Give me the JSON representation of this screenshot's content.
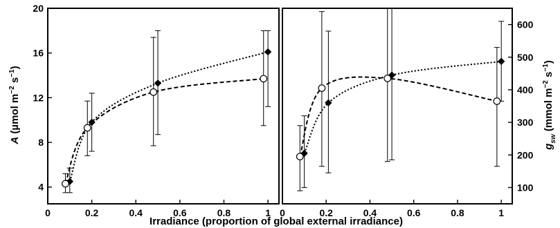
{
  "chart_data": [
    {
      "panel": "left",
      "type": "line",
      "xlabel": "Irradiance (proportion of global external irradiance)",
      "ylabel": "A (µmol m⁻² s⁻¹)",
      "xlim": [
        0,
        1.05
      ],
      "ylim": [
        2.5,
        20
      ],
      "x_ticks": [
        0,
        0.2,
        0.4,
        0.6,
        0.8,
        1
      ],
      "x_tick_labels": [
        "0",
        "0.2",
        "0.4",
        "0.6",
        "0.8",
        "1"
      ],
      "y_ticks": [
        4,
        8,
        12,
        16,
        20
      ],
      "y_tick_labels": [
        "4",
        "8",
        "12",
        "16",
        "20"
      ],
      "y_side": "left",
      "series": [
        {
          "marker": "filled-diamond",
          "line": "dotted",
          "points": [
            {
              "x": 0.1,
              "y": 4.5,
              "lo": 3.5,
              "hi": 5.7
            },
            {
              "x": 0.2,
              "y": 9.8,
              "lo": 7.2,
              "hi": 12.4
            },
            {
              "x": 0.5,
              "y": 13.3,
              "lo": 8.7,
              "hi": 18.0
            },
            {
              "x": 1.0,
              "y": 16.1,
              "lo": 11.2,
              "hi": 18.0
            }
          ]
        },
        {
          "marker": "open-circle",
          "line": "dashed",
          "points": [
            {
              "x": 0.08,
              "y": 4.3,
              "lo": 3.5,
              "hi": 5.2
            },
            {
              "x": 0.18,
              "y": 9.3,
              "lo": 6.8,
              "hi": 11.7
            },
            {
              "x": 0.48,
              "y": 12.5,
              "lo": 7.7,
              "hi": 17.4
            },
            {
              "x": 0.98,
              "y": 13.7,
              "lo": 9.5,
              "hi": 18.0
            }
          ]
        }
      ]
    },
    {
      "panel": "right",
      "type": "line",
      "xlabel": "Irradiance (proportion of global external irradiance)",
      "ylabel": "gsw (mmol m⁻² s⁻¹)",
      "ylabel_main": "g",
      "ylabel_sub": "sw",
      "ylabel_rest": " (mmol m⁻² s⁻¹)",
      "xlim": [
        0,
        1.05
      ],
      "ylim": [
        50,
        650
      ],
      "x_ticks": [
        0,
        0.2,
        0.4,
        0.6,
        0.8,
        1
      ],
      "x_tick_labels": [
        "0",
        "0.2",
        "0.4",
        "0.6",
        "0.8",
        "1"
      ],
      "y_ticks": [
        100,
        200,
        300,
        400,
        500,
        600
      ],
      "y_tick_labels": [
        "100",
        "200",
        "300",
        "400",
        "500",
        "600"
      ],
      "y_side": "right",
      "series": [
        {
          "marker": "filled-diamond",
          "line": "dotted",
          "points": [
            {
              "x": 0.1,
              "y": 205,
              "lo": 100,
              "hi": 320
            },
            {
              "x": 0.21,
              "y": 360,
              "lo": 145,
              "hi": 580
            },
            {
              "x": 0.5,
              "y": 445,
              "lo": 185,
              "hi": 650
            },
            {
              "x": 1.0,
              "y": 487,
              "lo": 365,
              "hi": 610
            }
          ]
        },
        {
          "marker": "open-circle",
          "line": "dashed",
          "points": [
            {
              "x": 0.08,
              "y": 195,
              "lo": 90,
              "hi": 290
            },
            {
              "x": 0.18,
              "y": 405,
              "lo": 165,
              "hi": 640
            },
            {
              "x": 0.48,
              "y": 435,
              "lo": 180,
              "hi": 650
            },
            {
              "x": 0.98,
              "y": 365,
              "lo": 165,
              "hi": 530
            }
          ]
        }
      ]
    }
  ]
}
